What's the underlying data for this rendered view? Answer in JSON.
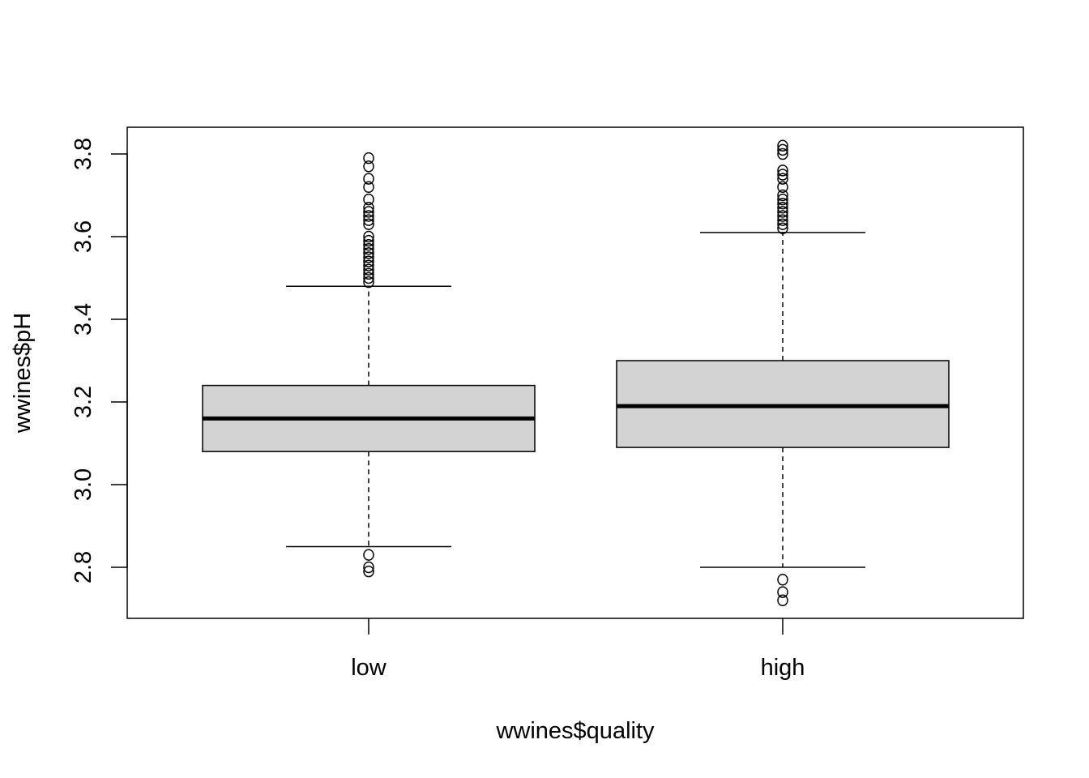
{
  "chart_data": {
    "type": "boxplot",
    "title": "",
    "xlabel": "wwines$quality",
    "ylabel": "wwines$pH",
    "categories": [
      "low",
      "high"
    ],
    "ylim": [
      2.7,
      3.85
    ],
    "yticks": [
      2.8,
      3.0,
      3.2,
      3.4,
      3.6,
      3.8
    ],
    "ytick_labels": [
      "2.8",
      "3.0",
      "3.2",
      "3.4",
      "3.6",
      "3.8"
    ],
    "grid": false,
    "boxes": [
      {
        "category": "low",
        "whisker_low": 2.85,
        "q1": 3.08,
        "median": 3.16,
        "q3": 3.24,
        "whisker_high": 3.48,
        "outliers": [
          2.79,
          2.8,
          2.83,
          3.49,
          3.5,
          3.51,
          3.52,
          3.53,
          3.54,
          3.55,
          3.56,
          3.57,
          3.58,
          3.59,
          3.6,
          3.63,
          3.64,
          3.65,
          3.66,
          3.67,
          3.69,
          3.72,
          3.74,
          3.77,
          3.79
        ]
      },
      {
        "category": "high",
        "whisker_low": 2.8,
        "q1": 3.09,
        "median": 3.19,
        "q3": 3.3,
        "whisker_high": 3.61,
        "outliers": [
          2.72,
          2.74,
          2.77,
          3.62,
          3.63,
          3.64,
          3.65,
          3.66,
          3.67,
          3.68,
          3.69,
          3.7,
          3.72,
          3.74,
          3.75,
          3.76,
          3.8,
          3.81,
          3.82
        ]
      }
    ]
  }
}
